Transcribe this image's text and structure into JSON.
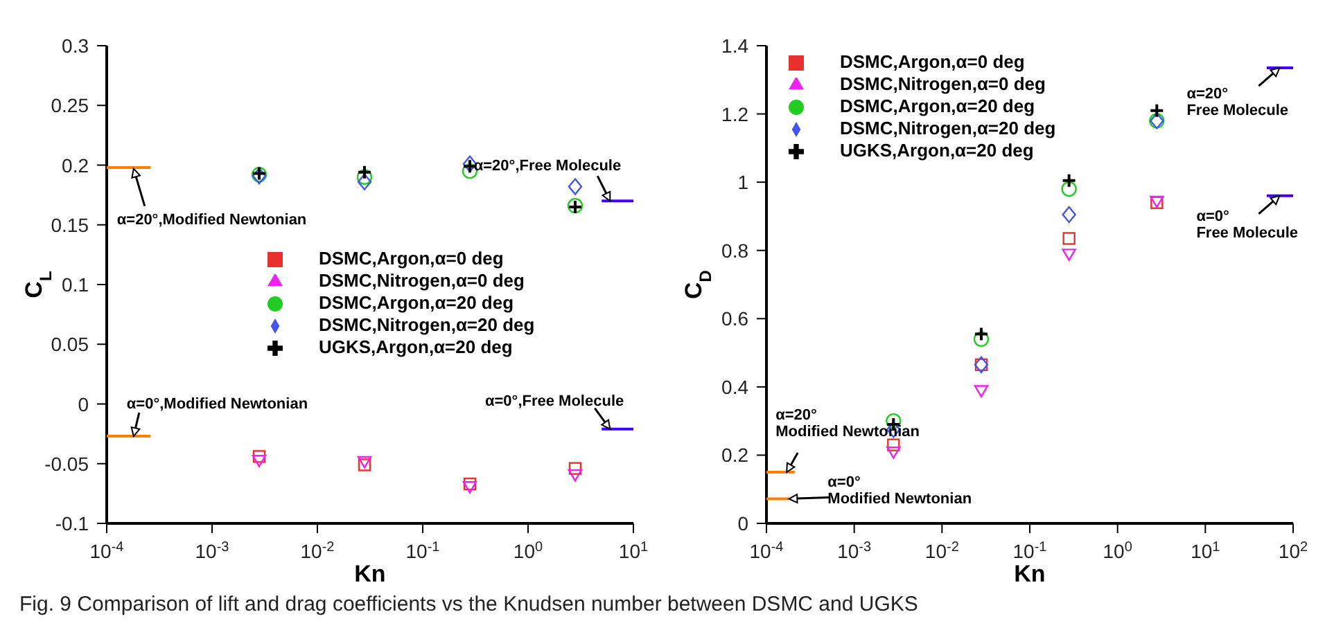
{
  "chart_data": [
    {
      "type": "scatter",
      "xlabel": "Kn",
      "ylabel": "C$_{L}$",
      "log": "x",
      "legend": "right",
      "grid": false,
      "xlim": [
        0.0001,
        10
      ],
      "xticks": [
        {
          "value": 0.0001,
          "label": "10$^{-4}$"
        },
        {
          "value": 0.001,
          "label": "10$^{-3}$"
        },
        {
          "value": 0.01,
          "label": "10$^{-2}$"
        },
        {
          "value": 0.1,
          "label": "10$^{-1}$"
        },
        {
          "value": 1,
          "label": "10$^{0}$"
        },
        {
          "value": 10,
          "label": "10$^{1}$"
        }
      ],
      "ylim": [
        -0.1,
        0.3
      ],
      "yticks": [
        -0.1,
        -0.05,
        0,
        0.05,
        0.1,
        0.15,
        0.2,
        0.25,
        0.3
      ],
      "x": [
        0.0028,
        0.028,
        0.28,
        2.8
      ],
      "series": [
        {
          "name": "DSMC,Argon,α=0 deg",
          "color": "#e8312f",
          "marker": "square",
          "values": [
            -0.044,
            -0.051,
            -0.067,
            -0.054
          ]
        },
        {
          "name": "DSMC,Nitrogen,α=0 deg",
          "color": "#ee22ee",
          "marker": "triangle",
          "values": [
            -0.047,
            -0.048,
            -0.069,
            -0.059
          ]
        },
        {
          "name": "DSMC,Argon,α=20 deg",
          "color": "#22cc22",
          "marker": "circle",
          "values": [
            0.192,
            0.19,
            0.195,
            0.166
          ]
        },
        {
          "name": "DSMC,Nitrogen,α=20 deg",
          "color": "#4455ee",
          "marker": "diamond",
          "values": [
            0.191,
            0.186,
            0.201,
            0.182
          ]
        },
        {
          "name": "UGKS,Argon,α=20 deg",
          "color": "#000000",
          "marker": "cross",
          "values": [
            0.193,
            0.194,
            0.199,
            0.165
          ]
        },
        {
          "type": "line",
          "color": "#ff8000",
          "marker": "none",
          "x": [
            0.0001,
            0.00026
          ],
          "values": [
            0.198,
            0.198
          ]
        },
        {
          "type": "line",
          "color": "#ff8000",
          "marker": "none",
          "x": [
            0.0001,
            0.00026
          ],
          "values": [
            -0.027,
            -0.027
          ]
        },
        {
          "type": "line",
          "color": "#4400ff",
          "marker": "none",
          "x": [
            5,
            10
          ],
          "values": [
            0.17,
            0.17
          ]
        },
        {
          "type": "line",
          "color": "#4400ff",
          "marker": "none",
          "x": [
            5,
            10
          ],
          "values": [
            -0.021,
            -0.021
          ]
        }
      ],
      "annotations": [
        {
          "text": "α=20°,Modified Newtonian",
          "x": 0.00018,
          "y": 0.197
        },
        {
          "text": "α=20°,Free Molecule",
          "x": 6,
          "y": 0.17
        },
        {
          "text": "α=0°,Modified Newtonian",
          "x": 0.00018,
          "y": -0.027
        },
        {
          "text": "α=0°,Free Molecule",
          "x": 6,
          "y": -0.021
        },
        "Fig. 9 Comparison of lift and drag coefficients vs the Knudsen number between DSMC and UGKS"
      ]
    },
    {
      "type": "scatter",
      "xlabel": "Kn",
      "ylabel": "C$_{D}$",
      "log": "x",
      "legend": "top left",
      "grid": false,
      "xlim": [
        0.0001,
        100
      ],
      "xticks": [
        {
          "value": 0.0001,
          "label": "10$^{-4}$"
        },
        {
          "value": 0.001,
          "label": "10$^{-3}$"
        },
        {
          "value": 0.01,
          "label": "10$^{-2}$"
        },
        {
          "value": 0.1,
          "label": "10$^{-1}$"
        },
        {
          "value": 1,
          "label": "10$^{0}$"
        },
        {
          "value": 10,
          "label": "10$^{1}$"
        },
        {
          "value": 100,
          "label": "10$^{2}$"
        }
      ],
      "ylim": [
        0,
        1.4
      ],
      "yticks": [
        0,
        0.2,
        0.4,
        0.6,
        0.8,
        1,
        1.2,
        1.4
      ],
      "x": [
        0.0028,
        0.028,
        0.28,
        2.8
      ],
      "series": [
        {
          "name": "DSMC,Argon,α=0 deg",
          "color": "#e8312f",
          "marker": "square",
          "values": [
            0.23,
            0.465,
            0.835,
            0.94
          ]
        },
        {
          "name": "DSMC,Nitrogen,α=0 deg",
          "color": "#ee22ee",
          "marker": "triangle",
          "values": [
            0.21,
            0.39,
            0.79,
            0.945
          ]
        },
        {
          "name": "DSMC,Argon,α=20 deg",
          "color": "#22cc22",
          "marker": "circle",
          "values": [
            0.3,
            0.54,
            0.98,
            1.18
          ]
        },
        {
          "name": "DSMC,Nitrogen,α=20 deg",
          "color": "#4455ee",
          "marker": "diamond",
          "values": [
            0.275,
            0.465,
            0.905,
            1.18
          ]
        },
        {
          "name": "UGKS,Argon,α=20 deg",
          "color": "#000000",
          "marker": "cross",
          "values": [
            0.29,
            0.555,
            1.005,
            1.21
          ]
        },
        {
          "type": "line",
          "color": "#ff8000",
          "marker": "none",
          "x": [
            0.0001,
            0.00021
          ],
          "values": [
            0.15,
            0.15
          ]
        },
        {
          "type": "line",
          "color": "#ff8000",
          "marker": "none",
          "x": [
            0.0001,
            0.00018
          ],
          "values": [
            0.072,
            0.072
          ]
        },
        {
          "type": "line",
          "color": "#4400ff",
          "marker": "none",
          "x": [
            50,
            100
          ],
          "values": [
            1.335,
            1.335
          ]
        },
        {
          "type": "line",
          "color": "#4400ff",
          "marker": "none",
          "x": [
            50,
            100
          ],
          "values": [
            0.96,
            0.96
          ]
        }
      ],
      "annotations": [
        {
          "text": "α=20°\nModified Newtonian",
          "x": 0.00017,
          "y": 0.15
        },
        {
          "text": "α=0°\nModified Newtonian",
          "x": 0.00018,
          "y": 0.072
        },
        {
          "text": "α=20°\nFree Molecule",
          "x": 70,
          "y": 1.335
        },
        {
          "text": "α=0°\nFree Molecule",
          "x": 70,
          "y": 0.96
        }
      ]
    }
  ]
}
